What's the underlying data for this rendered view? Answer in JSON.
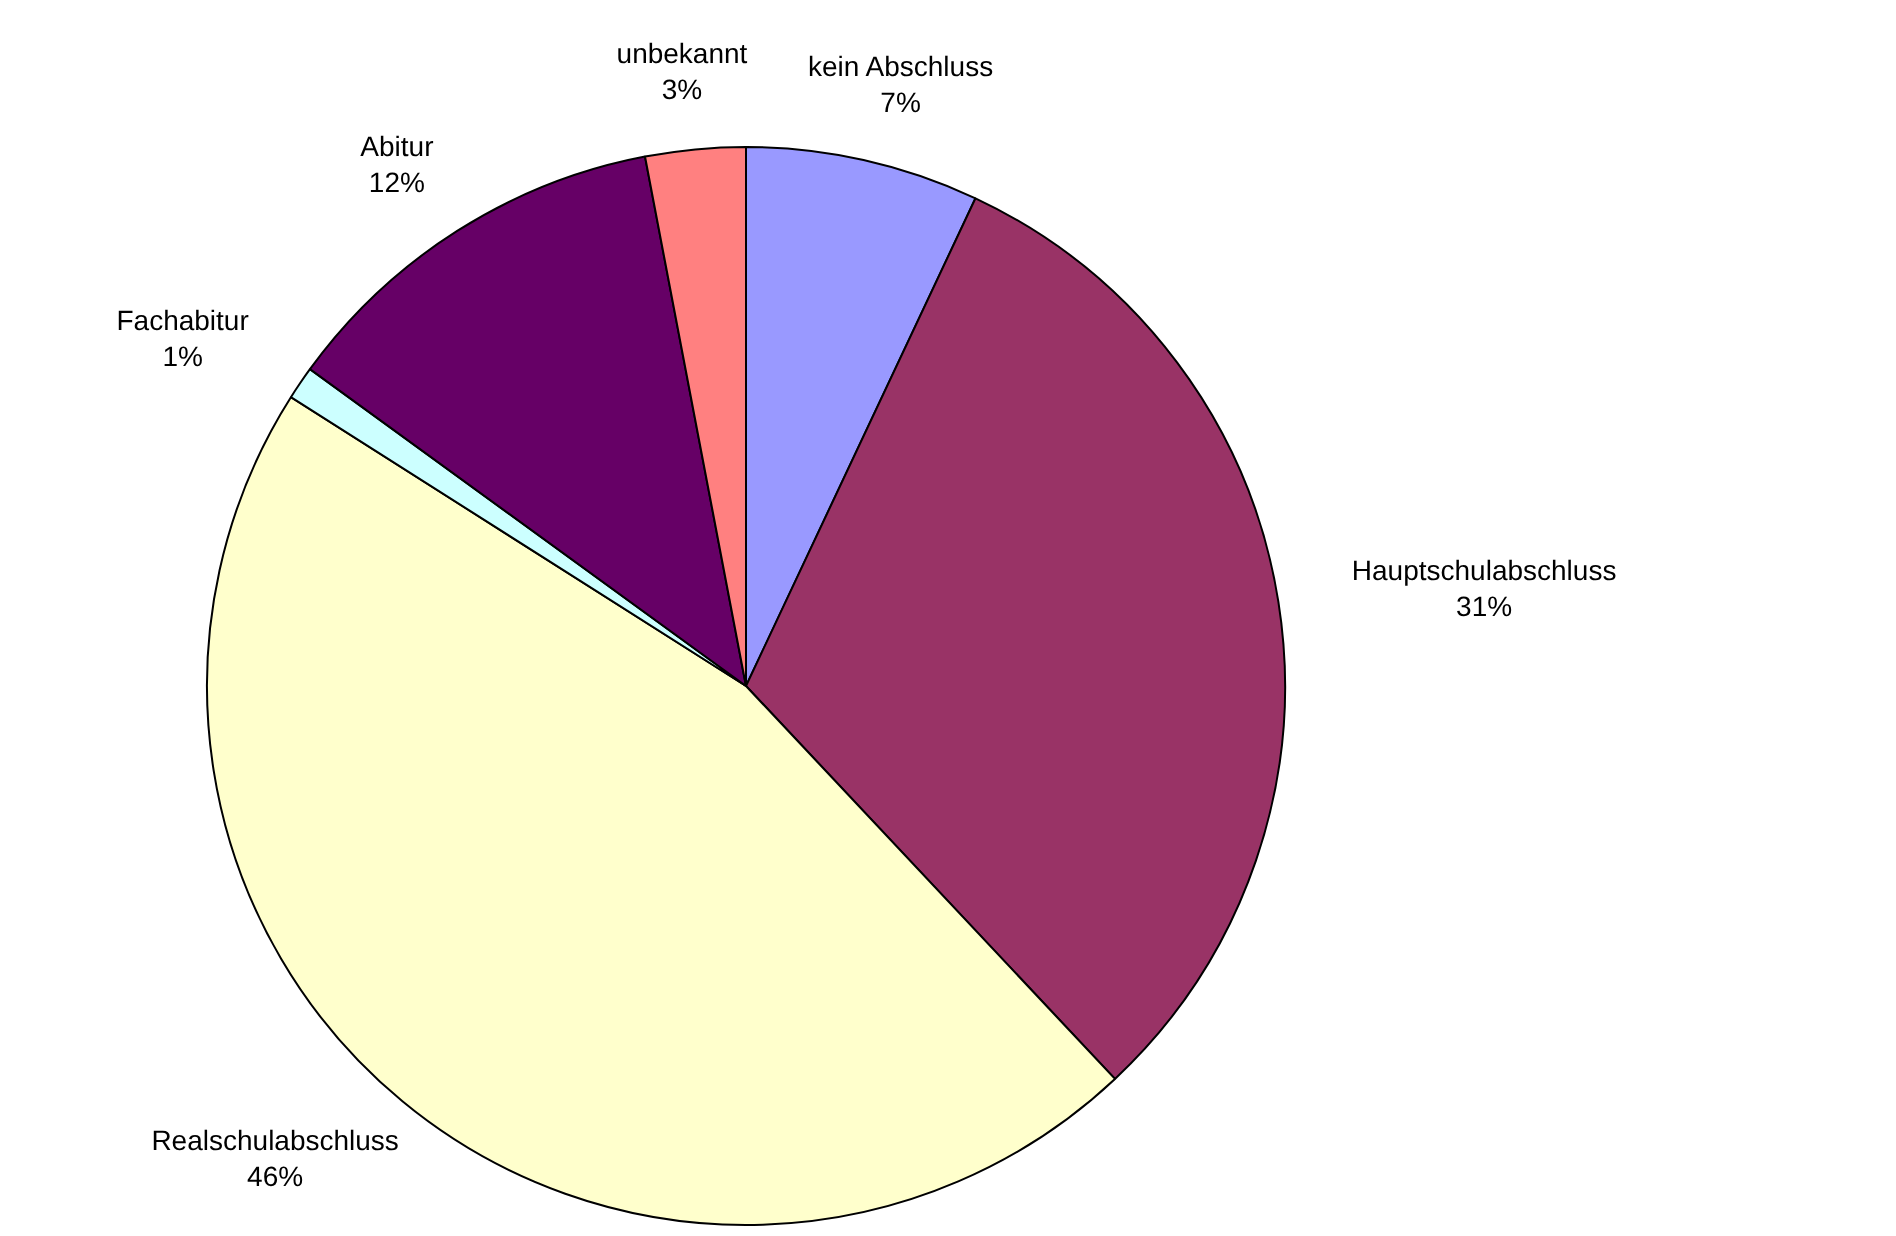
{
  "chart_data": {
    "type": "pie",
    "categories": [
      "kein Abschluss",
      "Hauptschulabschluss",
      "Realschulabschluss",
      "Fachabitur",
      "Abitur",
      "unbekannt"
    ],
    "values": [
      7,
      31,
      46,
      1,
      12,
      3
    ],
    "value_labels": [
      "7%",
      "31%",
      "46%",
      "1%",
      "12%",
      "3%"
    ],
    "colors": [
      "#9999ff",
      "#993366",
      "#ffffcc",
      "#ccffff",
      "#660066",
      "#ff8080"
    ],
    "legend": false
  }
}
